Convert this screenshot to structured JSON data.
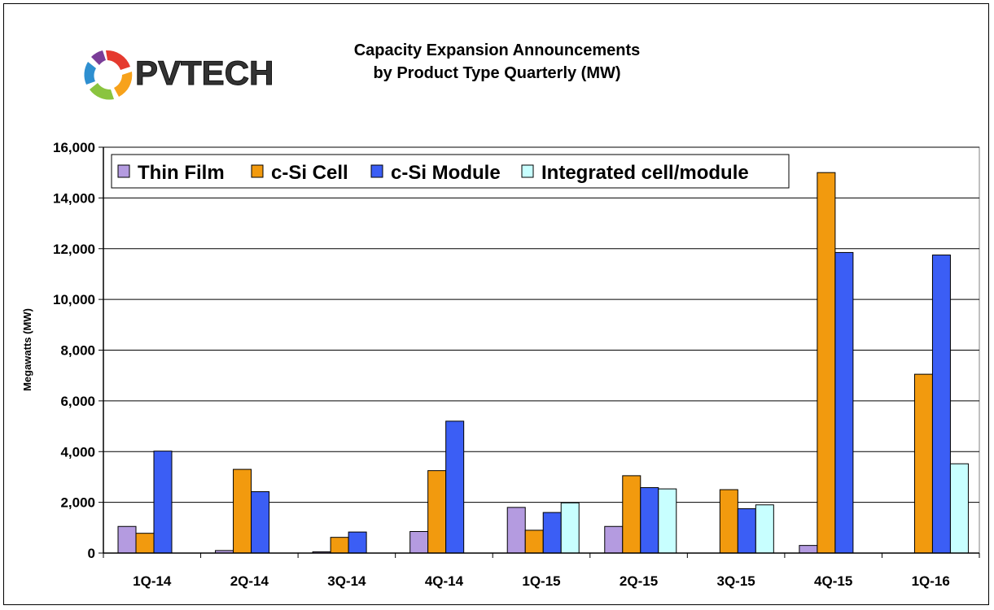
{
  "logo": {
    "text": "PVTECH",
    "colors": [
      "#e53a2f",
      "#f7a21b",
      "#8ac43f",
      "#2e8fd0",
      "#7a3d98"
    ]
  },
  "colors": {
    "thin_film": "#b49be0",
    "csi_cell": "#f29a0e",
    "csi_module": "#3b5ef5",
    "integrated": "#c8ffff"
  },
  "chart_data": {
    "type": "bar",
    "title": "Capacity Expansion Announcements",
    "subtitle": "by Product Type Quarterly (MW)",
    "xlabel": "",
    "ylabel": "Megawatts (MW)",
    "ylim": [
      0,
      16000
    ],
    "yticks": [
      0,
      2000,
      4000,
      6000,
      8000,
      10000,
      12000,
      14000,
      16000
    ],
    "ytick_labels": [
      "0",
      "2,000",
      "4,000",
      "6,000",
      "8,000",
      "10,000",
      "12,000",
      "14,000",
      "16,000"
    ],
    "grid": true,
    "legend_position": "top-left",
    "categories": [
      "1Q-14",
      "2Q-14",
      "3Q-14",
      "4Q-14",
      "1Q-15",
      "2Q-15",
      "3Q-15",
      "4Q-15",
      "1Q-16"
    ],
    "series": [
      {
        "name": "Thin Film",
        "key": "thin_film",
        "values": [
          1050,
          100,
          50,
          850,
          1800,
          1050,
          0,
          300,
          0
        ]
      },
      {
        "name": "c-Si Cell",
        "key": "csi_cell",
        "values": [
          780,
          3300,
          620,
          3250,
          900,
          3050,
          2500,
          15000,
          7050
        ]
      },
      {
        "name": "c-Si Module",
        "key": "csi_module",
        "values": [
          4020,
          2420,
          830,
          5200,
          1600,
          2580,
          1750,
          11850,
          11750
        ]
      },
      {
        "name": "Integrated cell/module",
        "key": "integrated",
        "values": [
          0,
          0,
          0,
          0,
          1980,
          2530,
          1900,
          0,
          3520
        ]
      }
    ]
  }
}
